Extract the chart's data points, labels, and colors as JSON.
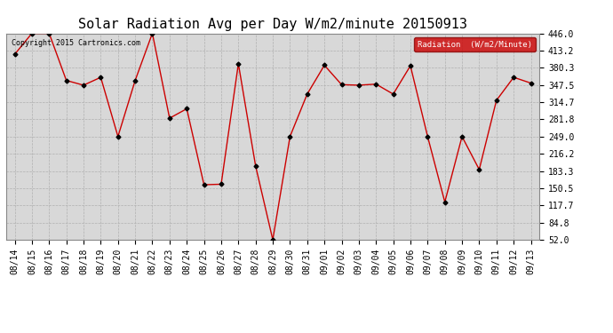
{
  "title": "Solar Radiation Avg per Day W/m2/minute 20150913",
  "copyright": "Copyright 2015 Cartronics.com",
  "legend_label": "Radiation  (W/m2/Minute)",
  "labels": [
    "08/14",
    "08/15",
    "08/16",
    "08/17",
    "08/18",
    "08/19",
    "08/20",
    "08/21",
    "08/22",
    "08/23",
    "08/24",
    "08/25",
    "08/26",
    "08/27",
    "08/28",
    "08/29",
    "08/30",
    "08/31",
    "09/01",
    "09/02",
    "09/03",
    "09/04",
    "09/05",
    "09/06",
    "09/07",
    "09/08",
    "09/09",
    "09/10",
    "09/11",
    "09/12",
    "09/13"
  ],
  "values": [
    406,
    446,
    446,
    356,
    347,
    362,
    249,
    356,
    446,
    284,
    302,
    157,
    158,
    388,
    193,
    52,
    249,
    330,
    385,
    348,
    347,
    349,
    330,
    384,
    249,
    124,
    249,
    186,
    318,
    362,
    351
  ],
  "ylim": [
    52.0,
    446.0
  ],
  "yticks": [
    52.0,
    84.8,
    117.7,
    150.5,
    183.3,
    216.2,
    249.0,
    281.8,
    314.7,
    347.5,
    380.3,
    413.2,
    446.0
  ],
  "line_color": "#cc0000",
  "marker_color": "#000000",
  "bg_color": "#ffffff",
  "plot_bg_color": "#d8d8d8",
  "grid_color": "#b0b0b0",
  "title_fontsize": 11,
  "tick_fontsize": 7,
  "legend_bg": "#cc0000",
  "legend_text_color": "#ffffff"
}
